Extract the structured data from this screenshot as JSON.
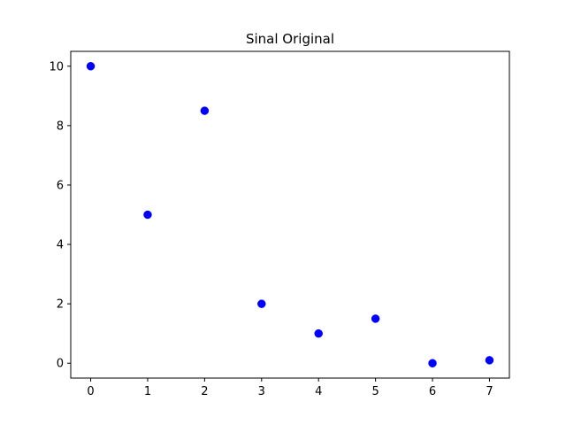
{
  "chart_data": {
    "type": "scatter",
    "title": "Sinal Original",
    "xlabel": "",
    "ylabel": "",
    "x": [
      0,
      1,
      2,
      3,
      4,
      5,
      6,
      7
    ],
    "series": [
      {
        "values": [
          10,
          5,
          8.5,
          2,
          1,
          1.5,
          0,
          0.1
        ],
        "color": "#0000ff",
        "marker": "circle"
      }
    ],
    "xlim": [
      -0.35,
      7.35
    ],
    "ylim": [
      -0.5,
      10.5
    ],
    "xticks": [
      "0",
      "1",
      "2",
      "3",
      "4",
      "5",
      "6",
      "7"
    ],
    "yticks": [
      "0",
      "2",
      "4",
      "6",
      "8",
      "10"
    ],
    "grid": false,
    "legend": "none"
  }
}
